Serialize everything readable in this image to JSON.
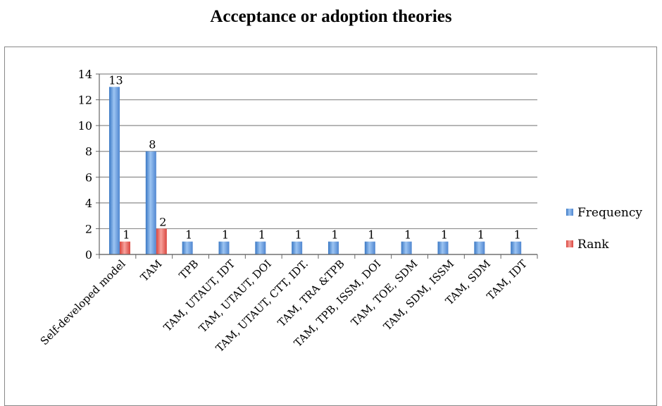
{
  "chart_data": {
    "type": "bar",
    "title": "Acceptance or adoption theories",
    "categories": [
      "Self-developed model",
      "TAM",
      "TPB",
      "TAM, UTAUT, IDT",
      "TAM, UTAUT, DOI",
      "TAM, UTAUT, CTT, IDT.",
      "TAM, TRA &TPB",
      "TAM, TPB, ISSM, DOI",
      "TAM, TOE, SDM",
      "TAM, SDM, ISSM",
      "TAM, SDM",
      "TAM, IDT"
    ],
    "series": [
      {
        "name": "Frequency",
        "values": [
          13,
          8,
          1,
          1,
          1,
          1,
          1,
          1,
          1,
          1,
          1,
          1
        ],
        "labels": [
          "13",
          "8",
          "1",
          "1",
          "1",
          "1",
          "1",
          "1",
          "1",
          "1",
          "1",
          "1"
        ],
        "color": "#4f86c6"
      },
      {
        "name": "Rank",
        "values": [
          1,
          2,
          null,
          null,
          null,
          null,
          null,
          null,
          null,
          null,
          null,
          null
        ],
        "labels": [
          "1",
          "2",
          "",
          "",
          "",
          "",
          "",
          "",
          "",
          "",
          "",
          ""
        ],
        "color": "#e0504a"
      }
    ],
    "ylim": [
      0,
      14
    ],
    "yticks": [
      0,
      2,
      4,
      6,
      8,
      10,
      12,
      14
    ],
    "grid": true,
    "legend": "right"
  }
}
